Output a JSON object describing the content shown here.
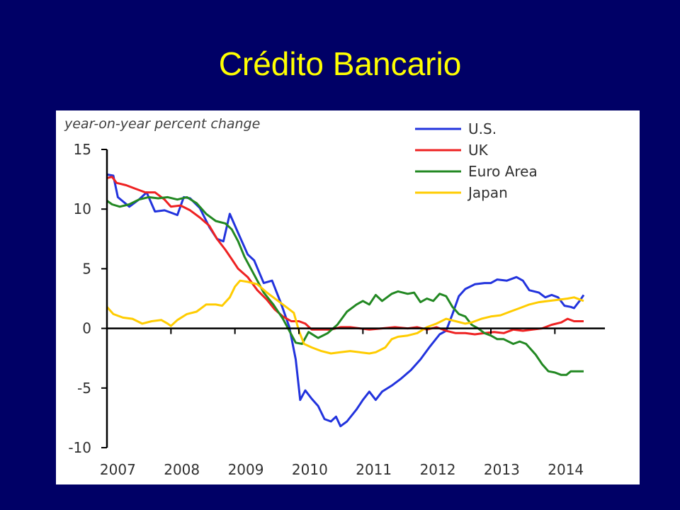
{
  "slide": {
    "title": "Crédito Bancario"
  },
  "chart_data": {
    "type": "line",
    "ylabel": "year-on-year percent change",
    "xlabel": "",
    "ylim": [
      -10,
      15
    ],
    "xlim": [
      2007.0,
      2014.45
    ],
    "yticks": [
      15,
      10,
      5,
      0,
      -5,
      -10
    ],
    "xticks": [
      "2007",
      "2008",
      "2009",
      "2010",
      "2011",
      "2012",
      "2013",
      "2014"
    ],
    "legend_position": "top-right",
    "grid": false,
    "series": [
      {
        "name": "U.S.",
        "color": "#2233dd",
        "points": [
          [
            2007.0,
            12.9
          ],
          [
            2007.1,
            12.8
          ],
          [
            2007.17,
            11.0
          ],
          [
            2007.35,
            10.2
          ],
          [
            2007.5,
            10.8
          ],
          [
            2007.62,
            11.4
          ],
          [
            2007.75,
            9.8
          ],
          [
            2007.9,
            9.9
          ],
          [
            2008.05,
            9.6
          ],
          [
            2008.1,
            9.5
          ],
          [
            2008.2,
            11.0
          ],
          [
            2008.3,
            10.9
          ],
          [
            2008.45,
            10.1
          ],
          [
            2008.6,
            8.5
          ],
          [
            2008.72,
            7.5
          ],
          [
            2008.82,
            7.3
          ],
          [
            2008.92,
            9.6
          ],
          [
            2009.05,
            8.0
          ],
          [
            2009.2,
            6.2
          ],
          [
            2009.3,
            5.7
          ],
          [
            2009.45,
            3.8
          ],
          [
            2009.58,
            4.0
          ],
          [
            2009.72,
            2.1
          ],
          [
            2009.85,
            0.1
          ],
          [
            2009.95,
            -2.6
          ],
          [
            2010.02,
            -6.0
          ],
          [
            2010.1,
            -5.2
          ],
          [
            2010.2,
            -5.9
          ],
          [
            2010.3,
            -6.5
          ],
          [
            2010.4,
            -7.6
          ],
          [
            2010.5,
            -7.8
          ],
          [
            2010.58,
            -7.4
          ],
          [
            2010.65,
            -8.2
          ],
          [
            2010.75,
            -7.8
          ],
          [
            2010.9,
            -6.8
          ],
          [
            2011.0,
            -6.0
          ],
          [
            2011.1,
            -5.3
          ],
          [
            2011.2,
            -6.0
          ],
          [
            2011.3,
            -5.3
          ],
          [
            2011.45,
            -4.8
          ],
          [
            2011.6,
            -4.2
          ],
          [
            2011.75,
            -3.5
          ],
          [
            2011.9,
            -2.6
          ],
          [
            2012.05,
            -1.5
          ],
          [
            2012.2,
            -0.5
          ],
          [
            2012.3,
            -0.2
          ],
          [
            2012.4,
            1.2
          ],
          [
            2012.5,
            2.7
          ],
          [
            2012.6,
            3.3
          ],
          [
            2012.75,
            3.7
          ],
          [
            2012.9,
            3.8
          ],
          [
            2013.0,
            3.8
          ],
          [
            2013.1,
            4.1
          ],
          [
            2013.25,
            4.0
          ],
          [
            2013.4,
            4.3
          ],
          [
            2013.5,
            4.0
          ],
          [
            2013.6,
            3.2
          ],
          [
            2013.75,
            3.0
          ],
          [
            2013.85,
            2.6
          ],
          [
            2013.95,
            2.8
          ],
          [
            2014.05,
            2.6
          ],
          [
            2014.15,
            1.9
          ],
          [
            2014.25,
            1.8
          ],
          [
            2014.3,
            1.7
          ],
          [
            2014.4,
            2.4
          ],
          [
            2014.45,
            2.8
          ]
        ]
      },
      {
        "name": "UK",
        "color": "#ee2222",
        "points": [
          [
            2007.0,
            12.6
          ],
          [
            2007.08,
            12.7
          ],
          [
            2007.15,
            12.2
          ],
          [
            2007.3,
            12.0
          ],
          [
            2007.45,
            11.7
          ],
          [
            2007.6,
            11.4
          ],
          [
            2007.75,
            11.4
          ],
          [
            2007.9,
            10.8
          ],
          [
            2008.0,
            10.2
          ],
          [
            2008.15,
            10.3
          ],
          [
            2008.3,
            9.9
          ],
          [
            2008.45,
            9.3
          ],
          [
            2008.6,
            8.6
          ],
          [
            2008.72,
            7.5
          ],
          [
            2008.85,
            6.6
          ],
          [
            2008.95,
            5.8
          ],
          [
            2009.05,
            5.0
          ],
          [
            2009.2,
            4.3
          ],
          [
            2009.35,
            3.2
          ],
          [
            2009.5,
            2.4
          ],
          [
            2009.62,
            1.6
          ],
          [
            2009.75,
            1.0
          ],
          [
            2009.88,
            0.6
          ],
          [
            2010.0,
            0.6
          ],
          [
            2010.1,
            0.4
          ],
          [
            2010.2,
            -0.1
          ],
          [
            2010.35,
            -0.1
          ],
          [
            2010.5,
            -0.1
          ],
          [
            2010.65,
            0.1
          ],
          [
            2010.8,
            0.1
          ],
          [
            2010.95,
            0.0
          ],
          [
            2011.1,
            -0.1
          ],
          [
            2011.3,
            0.0
          ],
          [
            2011.5,
            0.1
          ],
          [
            2011.7,
            0.0
          ],
          [
            2011.85,
            0.1
          ],
          [
            2012.0,
            -0.1
          ],
          [
            2012.15,
            0.1
          ],
          [
            2012.3,
            -0.2
          ],
          [
            2012.45,
            -0.4
          ],
          [
            2012.6,
            -0.4
          ],
          [
            2012.75,
            -0.5
          ],
          [
            2012.9,
            -0.4
          ],
          [
            2013.05,
            -0.3
          ],
          [
            2013.2,
            -0.4
          ],
          [
            2013.35,
            -0.1
          ],
          [
            2013.5,
            -0.2
          ],
          [
            2013.65,
            -0.1
          ],
          [
            2013.8,
            0.0
          ],
          [
            2013.95,
            0.3
          ],
          [
            2014.1,
            0.5
          ],
          [
            2014.2,
            0.8
          ],
          [
            2014.3,
            0.6
          ],
          [
            2014.45,
            0.6
          ]
        ]
      },
      {
        "name": "Euro Area",
        "color": "#228822",
        "points": [
          [
            2007.0,
            10.7
          ],
          [
            2007.08,
            10.4
          ],
          [
            2007.2,
            10.2
          ],
          [
            2007.35,
            10.4
          ],
          [
            2007.5,
            10.8
          ],
          [
            2007.65,
            11.0
          ],
          [
            2007.8,
            10.9
          ],
          [
            2007.95,
            11.0
          ],
          [
            2008.1,
            10.8
          ],
          [
            2008.25,
            11.0
          ],
          [
            2008.4,
            10.5
          ],
          [
            2008.55,
            9.6
          ],
          [
            2008.7,
            9.0
          ],
          [
            2008.85,
            8.8
          ],
          [
            2008.95,
            8.3
          ],
          [
            2009.05,
            7.3
          ],
          [
            2009.15,
            6.0
          ],
          [
            2009.3,
            4.5
          ],
          [
            2009.45,
            3.0
          ],
          [
            2009.6,
            2.0
          ],
          [
            2009.75,
            0.8
          ],
          [
            2009.85,
            -0.2
          ],
          [
            2009.95,
            -1.2
          ],
          [
            2010.05,
            -1.3
          ],
          [
            2010.15,
            -0.3
          ],
          [
            2010.3,
            -0.8
          ],
          [
            2010.45,
            -0.4
          ],
          [
            2010.6,
            0.3
          ],
          [
            2010.75,
            1.4
          ],
          [
            2010.9,
            2.0
          ],
          [
            2011.0,
            2.3
          ],
          [
            2011.1,
            2.0
          ],
          [
            2011.2,
            2.8
          ],
          [
            2011.3,
            2.3
          ],
          [
            2011.45,
            2.9
          ],
          [
            2011.55,
            3.1
          ],
          [
            2011.7,
            2.9
          ],
          [
            2011.8,
            3.0
          ],
          [
            2011.9,
            2.2
          ],
          [
            2012.0,
            2.5
          ],
          [
            2012.1,
            2.3
          ],
          [
            2012.2,
            2.9
          ],
          [
            2012.3,
            2.7
          ],
          [
            2012.4,
            1.8
          ],
          [
            2012.5,
            1.2
          ],
          [
            2012.6,
            1.0
          ],
          [
            2012.7,
            0.3
          ],
          [
            2012.8,
            0.0
          ],
          [
            2012.9,
            -0.4
          ],
          [
            2013.0,
            -0.6
          ],
          [
            2013.1,
            -0.9
          ],
          [
            2013.2,
            -0.9
          ],
          [
            2013.35,
            -1.3
          ],
          [
            2013.45,
            -1.1
          ],
          [
            2013.55,
            -1.3
          ],
          [
            2013.7,
            -2.2
          ],
          [
            2013.8,
            -3.0
          ],
          [
            2013.9,
            -3.6
          ],
          [
            2014.0,
            -3.7
          ],
          [
            2014.1,
            -3.9
          ],
          [
            2014.18,
            -3.9
          ],
          [
            2014.25,
            -3.6
          ],
          [
            2014.35,
            -3.6
          ],
          [
            2014.45,
            -3.6
          ]
        ]
      },
      {
        "name": "Japan",
        "color": "#ffcc00",
        "points": [
          [
            2007.0,
            1.8
          ],
          [
            2007.1,
            1.2
          ],
          [
            2007.25,
            0.9
          ],
          [
            2007.4,
            0.8
          ],
          [
            2007.55,
            0.4
          ],
          [
            2007.7,
            0.6
          ],
          [
            2007.85,
            0.7
          ],
          [
            2007.95,
            0.4
          ],
          [
            2008.0,
            0.2
          ],
          [
            2008.1,
            0.7
          ],
          [
            2008.25,
            1.2
          ],
          [
            2008.4,
            1.4
          ],
          [
            2008.55,
            2.0
          ],
          [
            2008.7,
            2.0
          ],
          [
            2008.8,
            1.9
          ],
          [
            2008.92,
            2.6
          ],
          [
            2009.0,
            3.5
          ],
          [
            2009.08,
            4.0
          ],
          [
            2009.2,
            3.9
          ],
          [
            2009.35,
            3.7
          ],
          [
            2009.5,
            3.0
          ],
          [
            2009.65,
            2.4
          ],
          [
            2009.8,
            1.8
          ],
          [
            2009.92,
            1.3
          ],
          [
            2010.0,
            -0.2
          ],
          [
            2010.08,
            -1.3
          ],
          [
            2010.2,
            -1.6
          ],
          [
            2010.35,
            -1.9
          ],
          [
            2010.5,
            -2.1
          ],
          [
            2010.65,
            -2.0
          ],
          [
            2010.8,
            -1.9
          ],
          [
            2010.95,
            -2.0
          ],
          [
            2011.1,
            -2.1
          ],
          [
            2011.2,
            -2.0
          ],
          [
            2011.35,
            -1.6
          ],
          [
            2011.45,
            -0.9
          ],
          [
            2011.55,
            -0.7
          ],
          [
            2011.7,
            -0.6
          ],
          [
            2011.85,
            -0.4
          ],
          [
            2012.0,
            0.1
          ],
          [
            2012.15,
            0.4
          ],
          [
            2012.3,
            0.8
          ],
          [
            2012.45,
            0.6
          ],
          [
            2012.6,
            0.4
          ],
          [
            2012.7,
            0.5
          ],
          [
            2012.85,
            0.8
          ],
          [
            2013.0,
            1.0
          ],
          [
            2013.15,
            1.1
          ],
          [
            2013.3,
            1.4
          ],
          [
            2013.45,
            1.7
          ],
          [
            2013.6,
            2.0
          ],
          [
            2013.75,
            2.2
          ],
          [
            2013.9,
            2.3
          ],
          [
            2014.05,
            2.4
          ],
          [
            2014.2,
            2.5
          ],
          [
            2014.3,
            2.6
          ],
          [
            2014.4,
            2.4
          ],
          [
            2014.45,
            2.3
          ]
        ]
      }
    ]
  }
}
